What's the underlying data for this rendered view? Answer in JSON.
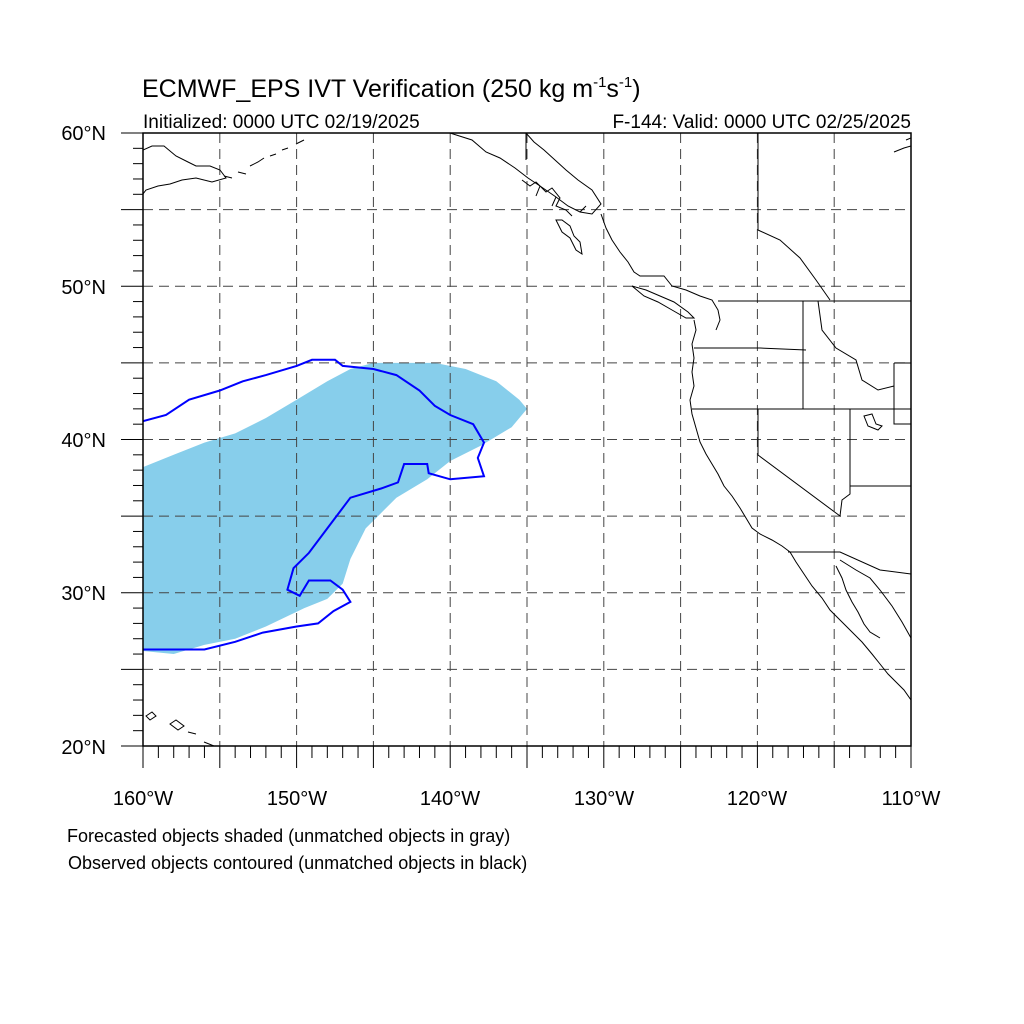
{
  "title_main": "ECMWF_EPS IVT Verification (250 kg m",
  "title_sup1": "-1",
  "title_mid": "s",
  "title_sup2": "-1",
  "title_end": ")",
  "left_subtitle": "Initialized: 0000 UTC 02/19/2025",
  "right_subtitle": "F-144: Valid: 0000 UTC 02/25/2025",
  "lat_labels": [
    {
      "value": 60,
      "text": "60°N"
    },
    {
      "value": 50,
      "text": "50°N"
    },
    {
      "value": 40,
      "text": "40°N"
    },
    {
      "value": 30,
      "text": "30°N"
    },
    {
      "value": 20,
      "text": "20°N"
    }
  ],
  "lon_labels": [
    {
      "value": -160,
      "text": "160°W"
    },
    {
      "value": -150,
      "text": "150°W"
    },
    {
      "value": -140,
      "text": "140°W"
    },
    {
      "value": -130,
      "text": "130°W"
    },
    {
      "value": -120,
      "text": "120°W"
    },
    {
      "value": -110,
      "text": "110°W"
    }
  ],
  "extent": {
    "lon_min": -160,
    "lon_max": -110,
    "lat_min": 20,
    "lat_max": 60
  },
  "grid_interval_deg": 5,
  "notes": [
    "Forecasted objects shaded (unmatched objects in gray)",
    "Observed objects contoured (unmatched objects in black)"
  ],
  "colors": {
    "forecast_fill": "#87ceeb",
    "observed_contour": "#0000ff",
    "coastline": "#000000",
    "grid": "#444444"
  },
  "chart_data": {
    "type": "map",
    "projection": "cylindrical-equidistant",
    "forecast_object": {
      "points": [
        [
          -160,
          26.2
        ],
        [
          -160,
          38.2
        ],
        [
          -158,
          39.0
        ],
        [
          -156,
          39.8
        ],
        [
          -154,
          40.4
        ],
        [
          -152,
          41.4
        ],
        [
          -150,
          42.6
        ],
        [
          -148,
          43.8
        ],
        [
          -146.5,
          44.6
        ],
        [
          -145,
          45.0
        ],
        [
          -141,
          45.0
        ],
        [
          -139,
          44.6
        ],
        [
          -137,
          43.8
        ],
        [
          -135.5,
          42.6
        ],
        [
          -135,
          42.0
        ],
        [
          -136,
          40.8
        ],
        [
          -138,
          39.6
        ],
        [
          -140,
          38.6
        ],
        [
          -141.5,
          37.4
        ],
        [
          -143.5,
          36.2
        ],
        [
          -145.5,
          34.2
        ],
        [
          -146.5,
          32.2
        ],
        [
          -147,
          30.6
        ],
        [
          -148,
          29.6
        ],
        [
          -149.5,
          29.0
        ],
        [
          -152,
          27.8
        ],
        [
          -154,
          27.0
        ],
        [
          -156,
          26.6
        ],
        [
          -158,
          26.0
        ],
        [
          -160,
          26.2
        ]
      ]
    },
    "observed_contours": [
      [
        [
          -160,
          41.2
        ],
        [
          -158.5,
          41.6
        ],
        [
          -157,
          42.6
        ],
        [
          -155,
          43.2
        ],
        [
          -153.5,
          43.8
        ],
        [
          -152,
          44.2
        ],
        [
          -150,
          44.8
        ],
        [
          -149,
          45.2
        ],
        [
          -147.5,
          45.2
        ],
        [
          -147,
          44.8
        ],
        [
          -145,
          44.6
        ],
        [
          -143.5,
          44.2
        ],
        [
          -142,
          43.2
        ],
        [
          -141,
          42.2
        ],
        [
          -140,
          41.6
        ],
        [
          -138.5,
          41.0
        ],
        [
          -137.8,
          39.8
        ],
        [
          -138.2,
          38.8
        ],
        [
          -137.8,
          37.6
        ],
        [
          -140,
          37.4
        ],
        [
          -141.4,
          37.8
        ],
        [
          -141.5,
          38.4
        ],
        [
          -143,
          38.4
        ],
        [
          -143.4,
          37.2
        ],
        [
          -144.5,
          36.8
        ],
        [
          -146.5,
          36.2
        ],
        [
          -148,
          34.2
        ],
        [
          -149.2,
          32.6
        ],
        [
          -150.2,
          31.6
        ],
        [
          -150.6,
          30.2
        ],
        [
          -149.8,
          29.8
        ],
        [
          -149.2,
          30.8
        ],
        [
          -147.8,
          30.8
        ],
        [
          -147,
          30.2
        ],
        [
          -146.5,
          29.4
        ],
        [
          -147.6,
          28.8
        ],
        [
          -148.6,
          28.0
        ],
        [
          -150,
          27.8
        ],
        [
          -152.2,
          27.4
        ],
        [
          -154,
          26.8
        ],
        [
          -156,
          26.3
        ],
        [
          -158,
          26.3
        ],
        [
          -160,
          26.3
        ]
      ]
    ]
  }
}
